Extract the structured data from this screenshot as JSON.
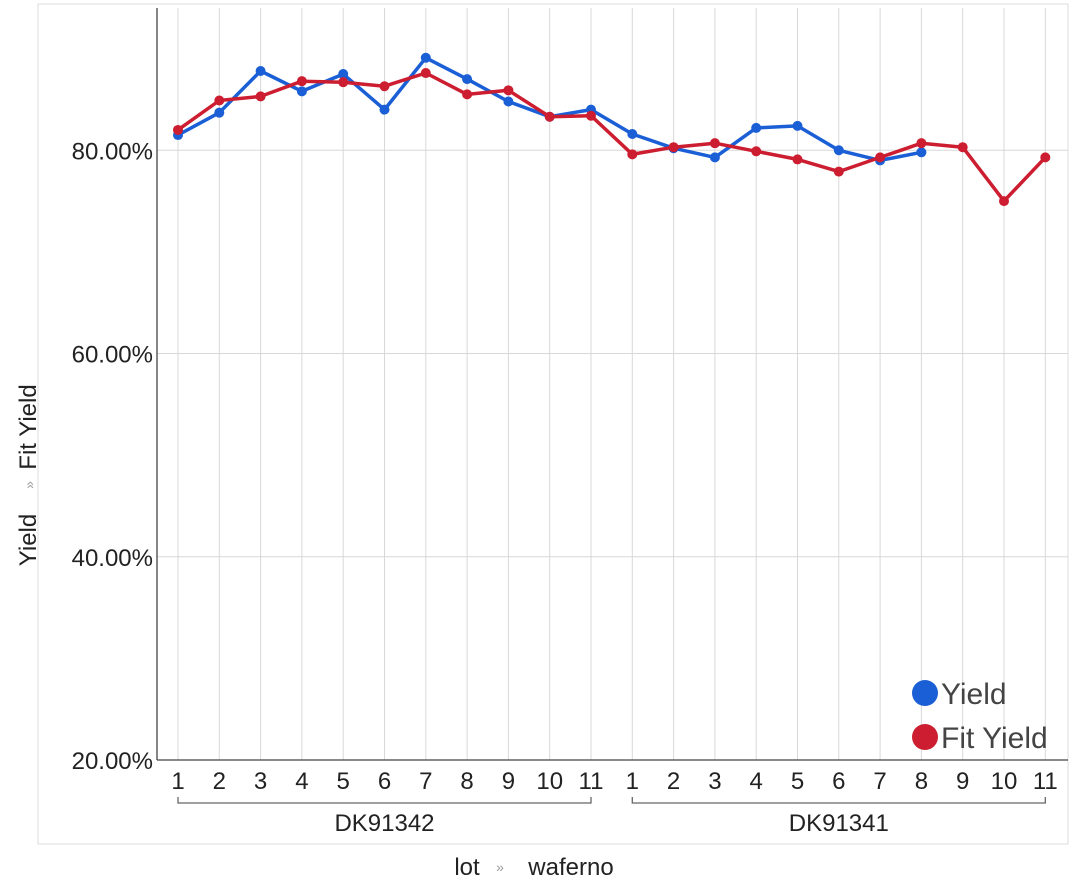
{
  "chart_data": {
    "type": "line",
    "x_axis": {
      "levels": [
        "lot",
        "waferno"
      ],
      "separator": "»",
      "groups": [
        {
          "lot": "DK91342",
          "wafers": [
            "1",
            "2",
            "3",
            "4",
            "5",
            "6",
            "7",
            "8",
            "9",
            "10",
            "11"
          ]
        },
        {
          "lot": "DK91341",
          "wafers": [
            "1",
            "2",
            "3",
            "4",
            "5",
            "6",
            "7",
            "8",
            "9",
            "10",
            "11"
          ]
        }
      ]
    },
    "y_axis": {
      "titles": [
        "Yield",
        "Fit Yield"
      ],
      "separator": "»",
      "ylim": [
        0.2,
        0.94
      ],
      "ticks": [
        0.2,
        0.4,
        0.6,
        0.8
      ],
      "tick_labels": [
        "20.00%",
        "40.00%",
        "60.00%",
        "80.00%"
      ],
      "grid": true
    },
    "series": [
      {
        "name": "Yield",
        "color": "#1a5fd6",
        "values": [
          0.815,
          0.837,
          0.878,
          0.858,
          0.875,
          0.84,
          0.891,
          0.87,
          0.848,
          0.833,
          0.84,
          0.816,
          0.802,
          0.793,
          0.822,
          0.824,
          0.8,
          0.79,
          0.798,
          null,
          null,
          null
        ]
      },
      {
        "name": "Fit Yield",
        "color": "#cc1e30",
        "values": [
          0.82,
          0.849,
          0.853,
          0.868,
          0.867,
          0.863,
          0.876,
          0.855,
          0.859,
          0.833,
          0.834,
          0.796,
          0.803,
          0.807,
          0.799,
          0.791,
          0.779,
          0.793,
          0.807,
          0.803,
          0.75,
          0.793
        ]
      }
    ],
    "legend": {
      "position": "bottom-right",
      "items": [
        "Yield",
        "Fit Yield"
      ]
    }
  }
}
